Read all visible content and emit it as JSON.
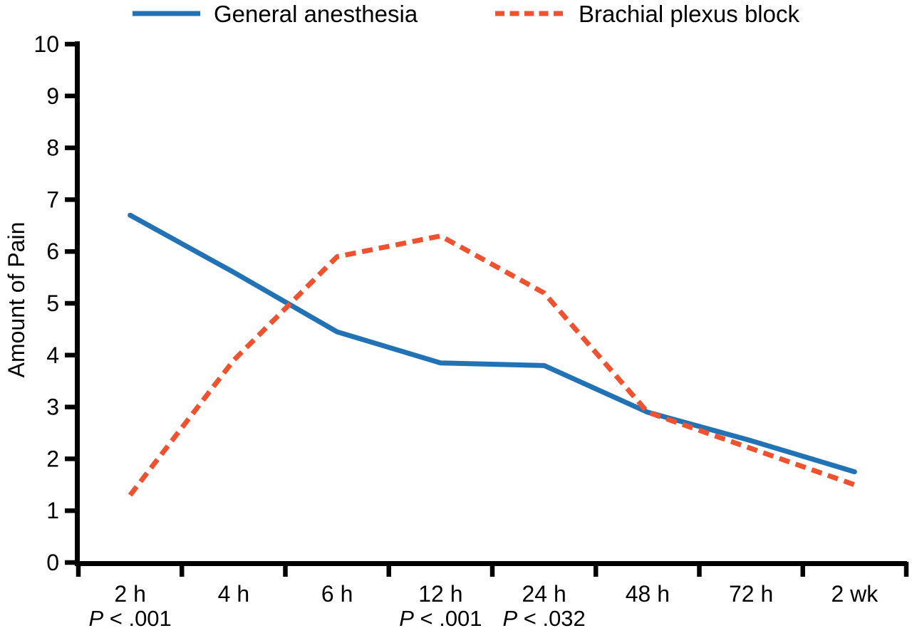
{
  "chart_data": {
    "type": "line",
    "title": "",
    "xlabel": "",
    "ylabel": "Amount of Pain",
    "ylim": [
      0,
      10
    ],
    "ytick_step": 1,
    "grid": false,
    "legend_position": "top",
    "background_color": "#ffffff",
    "axis_color": "#000000",
    "categories": [
      "2 h",
      "4 h",
      "6 h",
      "12 h",
      "24 h",
      "48 h",
      "72 h",
      "2 wk"
    ],
    "series": [
      {
        "name": "General anesthesia",
        "color": "#2273b6",
        "line_style": "solid",
        "values": [
          6.7,
          5.6,
          4.45,
          3.85,
          3.8,
          2.9,
          2.35,
          1.75
        ]
      },
      {
        "name": "Brachial plexus block",
        "color": "#f0522f",
        "line_style": "dashed",
        "values": [
          1.3,
          3.9,
          5.9,
          6.3,
          5.2,
          2.9,
          2.2,
          1.5
        ]
      }
    ],
    "annotations": [
      {
        "category": "2 h",
        "text": "P < .001"
      },
      {
        "category": "12 h",
        "text": "P < .001"
      },
      {
        "category": "24 h",
        "text": "P < .032"
      }
    ]
  }
}
